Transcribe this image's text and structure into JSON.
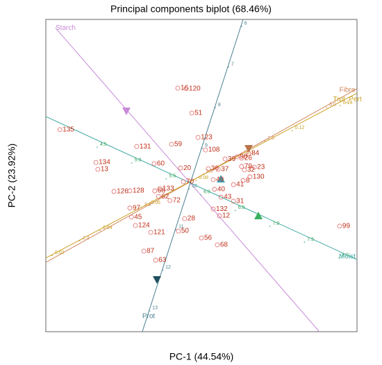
{
  "chart_data": {
    "type": "scatter",
    "title": "Principal components biplot (68.46%)",
    "x_label": "PC-1  (44.54%)",
    "y_label": "PC-2  (23.92%)",
    "xlim": [
      0,
      100
    ],
    "ylim": [
      0,
      100
    ],
    "color": "#e06868",
    "labels": [
      "16",
      "120",
      "51",
      "123",
      "59",
      "131",
      "108",
      "39",
      "96",
      "26",
      "84",
      "134",
      "13",
      "60",
      "20",
      "36",
      "37",
      "79",
      "23",
      "32",
      "130",
      "49",
      "70",
      "41",
      "8",
      "40",
      "126",
      "128",
      "133",
      "66",
      "62",
      "72",
      "43",
      "31",
      "97",
      "132",
      "12",
      "45",
      "28",
      "124",
      "121",
      "50",
      "99",
      "56",
      "68",
      "87",
      "63",
      "135"
    ],
    "x": [
      42.4,
      45.1,
      46.9,
      48.9,
      40.4,
      29.2,
      51.3,
      57.6,
      61.4,
      62.9,
      65.2,
      16.1,
      16.7,
      34.8,
      43.3,
      52.2,
      55.4,
      62.9,
      67.0,
      63.8,
      65.6,
      53.8,
      44.2,
      60.3,
      63.4,
      54.2,
      21.9,
      27.0,
      36.6,
      35.0,
      36.2,
      39.9,
      56.3,
      60.3,
      27.0,
      53.8,
      55.8,
      27.5,
      44.6,
      28.8,
      33.7,
      42.6,
      94.4,
      50.0,
      55.1,
      31.5,
      35.3,
      4.5
    ],
    "y": [
      78.0,
      77.8,
      70.0,
      62.2,
      60.0,
      59.3,
      58.2,
      55.3,
      56.0,
      55.6,
      57.1,
      54.2,
      52.0,
      53.8,
      52.4,
      52.2,
      52.0,
      52.9,
      52.7,
      51.8,
      49.6,
      48.7,
      48.0,
      47.1,
      48.4,
      45.6,
      44.9,
      45.1,
      45.8,
      45.1,
      43.3,
      42.0,
      43.1,
      41.8,
      39.6,
      39.3,
      37.1,
      36.7,
      36.2,
      34.0,
      31.8,
      32.2,
      33.8,
      30.0,
      27.8,
      25.8,
      22.9,
      64.7
    ],
    "variables": [
      {
        "name": "Starch",
        "color": "#c98ad9",
        "from": [
          3.1,
          97.3
        ],
        "to": [
          87.9,
          0
        ],
        "ticks": []
      },
      {
        "name": "Prot",
        "color": "#4a8090",
        "from": [
          63.4,
          100
        ],
        "to": [
          31.0,
          0
        ],
        "tick_from": [
          62.9,
          97.8
        ],
        "tick_to": [
          33.3,
          6.7
        ],
        "ticks": [
          6,
          7,
          8,
          9,
          10,
          11,
          12,
          13
        ]
      },
      {
        "name": "Fibre",
        "color": "#d0865a",
        "from": [
          0,
          22.2
        ],
        "to": [
          100,
          77.8
        ],
        "tick_from": [
          10.9,
          29.1
        ],
        "tick_to": [
          90.2,
          71.8
        ],
        "ticks": [
          2.2,
          2.4,
          2.6,
          2.8,
          {
            "value": 3,
            "label": "3.0"
          }
        ]
      },
      {
        "name": "Trpt_Pert",
        "color": "#c9a020",
        "from": [
          0,
          23.6
        ],
        "to": [
          100,
          76.4
        ],
        "tick_from": [
          2.0,
          24.4
        ],
        "tick_to": [
          94.6,
          72.4
        ],
        "ticks": [
          0.02,
          0.04,
          0.06,
          0.08,
          0.1,
          0.12,
          0.14
        ]
      },
      {
        "name": "Moist",
        "color": "#3aa8a0",
        "from": [
          0,
          68.9
        ],
        "to": [
          100,
          23.1
        ],
        "tick_from": [
          16.5,
          59.1
        ],
        "tick_to": [
          94.2,
          23.6
        ],
        "ticks": [
          4.5,
          {
            "value": 5,
            "label": "5.0"
          },
          5.5,
          {
            "value": 6,
            "label": "6.0"
          },
          6.5,
          {
            "value": 7,
            "label": "7.0"
          },
          7.5,
          {
            "value": 8,
            "label": "8.0"
          }
        ]
      }
    ]
  }
}
